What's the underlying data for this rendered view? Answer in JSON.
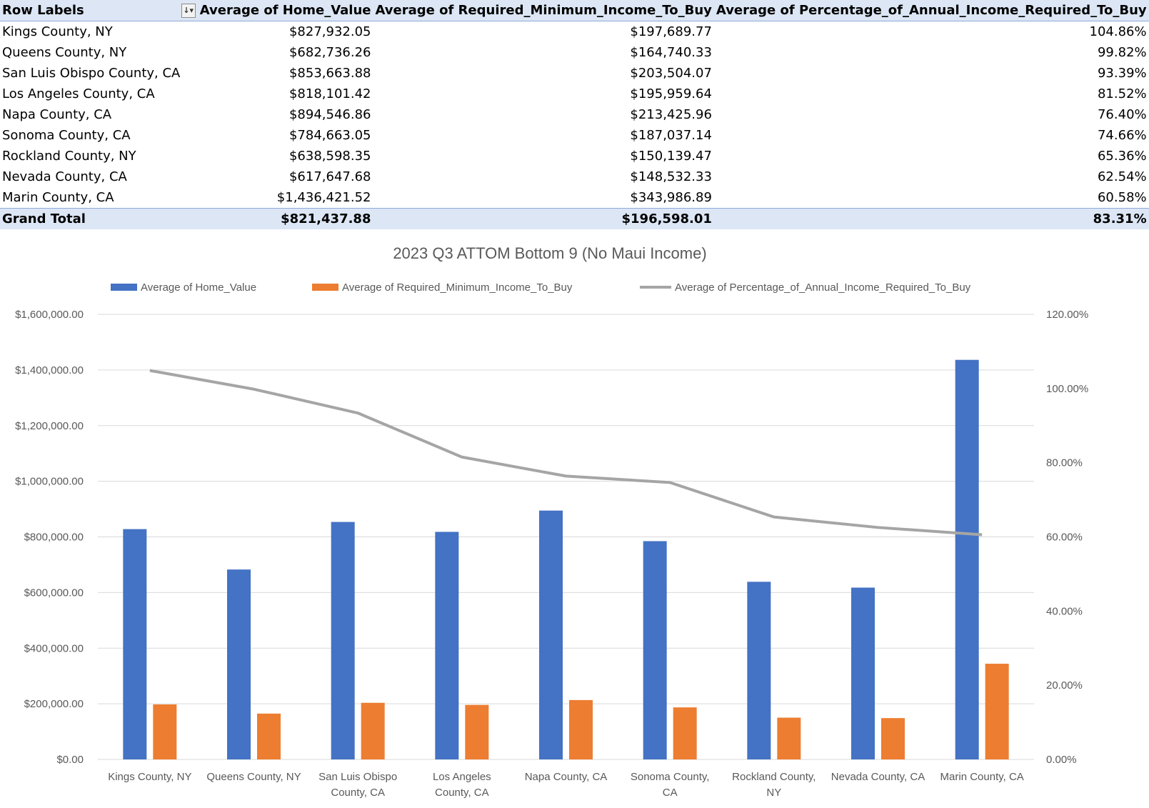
{
  "pivot": {
    "headers": {
      "row_labels": "Row Labels",
      "home_value": "Average of Home_Value",
      "min_income": "Average of Required_Minimum_Income_To_Buy",
      "pct_income": "Average of Percentage_of_Annual_Income_Required_To_Buy"
    },
    "rows": [
      {
        "label": "Kings County,  NY",
        "home_value": "$827,932.05",
        "min_income": "$197,689.77",
        "pct": "104.86%"
      },
      {
        "label": "Queens County,  NY",
        "home_value": "$682,736.26",
        "min_income": "$164,740.33",
        "pct": "99.82%"
      },
      {
        "label": "San Luis Obispo County,  CA",
        "home_value": "$853,663.88",
        "min_income": "$203,504.07",
        "pct": "93.39%"
      },
      {
        "label": "Los Angeles County,  CA",
        "home_value": "$818,101.42",
        "min_income": "$195,959.64",
        "pct": "81.52%"
      },
      {
        "label": "Napa County,  CA",
        "home_value": "$894,546.86",
        "min_income": "$213,425.96",
        "pct": "76.40%"
      },
      {
        "label": "Sonoma County,  CA",
        "home_value": "$784,663.05",
        "min_income": "$187,037.14",
        "pct": "74.66%"
      },
      {
        "label": "Rockland County,  NY",
        "home_value": "$638,598.35",
        "min_income": "$150,139.47",
        "pct": "65.36%"
      },
      {
        "label": "Nevada County,  CA",
        "home_value": "$617,647.68",
        "min_income": "$148,532.33",
        "pct": "62.54%"
      },
      {
        "label": "Marin County,  CA",
        "home_value": "$1,436,421.52",
        "min_income": "$343,986.89",
        "pct": "60.58%"
      }
    ],
    "total": {
      "label": "Grand Total",
      "home_value": "$821,437.88",
      "min_income": "$196,598.01",
      "pct": "83.31%"
    }
  },
  "chart_data": {
    "type": "bar",
    "title": "2023 Q3 ATTOM Bottom 9 (No Maui Income)",
    "categories": [
      [
        "Kings County,  NY"
      ],
      [
        "Queens County,  NY"
      ],
      [
        "San Luis Obispo",
        "County,  CA"
      ],
      [
        "Los Angeles",
        "County,  CA"
      ],
      [
        "Napa County,  CA"
      ],
      [
        "Sonoma County,",
        "CA"
      ],
      [
        "Rockland County,",
        "NY"
      ],
      [
        "Nevada County,  CA"
      ],
      [
        "Marin County,  CA"
      ]
    ],
    "series": [
      {
        "name": "Average of Home_Value",
        "type": "bar",
        "axis": "primary",
        "color": "#4472c4",
        "values": [
          827932.05,
          682736.26,
          853663.88,
          818101.42,
          894546.86,
          784663.05,
          638598.35,
          617647.68,
          1436421.52
        ]
      },
      {
        "name": "Average of Required_Minimum_Income_To_Buy",
        "type": "bar",
        "axis": "primary",
        "color": "#ed7d31",
        "values": [
          197689.77,
          164740.33,
          203504.07,
          195959.64,
          213425.96,
          187037.14,
          150139.47,
          148532.33,
          343986.89
        ]
      },
      {
        "name": "Average of Percentage_of_Annual_Income_Required_To_Buy",
        "type": "line",
        "axis": "secondary",
        "color": "#a5a5a5",
        "values": [
          104.86,
          99.82,
          93.39,
          81.52,
          76.4,
          74.66,
          65.36,
          62.54,
          60.58
        ]
      }
    ],
    "ylim": [
      0,
      1600000
    ],
    "yticks": [
      "$0.00",
      "$200,000.00",
      "$400,000.00",
      "$600,000.00",
      "$800,000.00",
      "$1,000,000.00",
      "$1,200,000.00",
      "$1,400,000.00",
      "$1,600,000.00"
    ],
    "y2lim": [
      0,
      120
    ],
    "y2ticks": [
      "0.00%",
      "20.00%",
      "40.00%",
      "60.00%",
      "80.00%",
      "100.00%",
      "120.00%"
    ],
    "grid": true,
    "legend": "top"
  }
}
